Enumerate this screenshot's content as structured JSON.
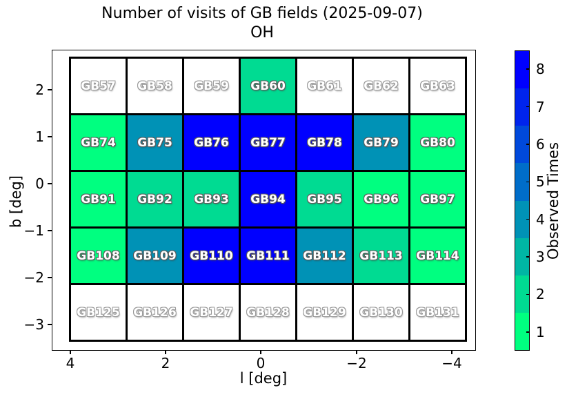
{
  "title": {
    "line1": "Number of visits of GB fields (2025-09-07)",
    "line2": "OH"
  },
  "axes": {
    "xlabel": "l [deg]",
    "ylabel": "b [deg]",
    "xtick_labels": [
      "4",
      "2",
      "0",
      "−2",
      "−4"
    ],
    "ytick_labels": [
      "2",
      "1",
      "0",
      "−1",
      "−2",
      "−3"
    ]
  },
  "colorbar": {
    "label": "Observed Times",
    "tick_labels": [
      "1",
      "2",
      "3",
      "4",
      "5",
      "6",
      "7",
      "8"
    ],
    "colors": [
      "#00ff80",
      "#00db92",
      "#00b6a4",
      "#0092b6",
      "#006dc9",
      "#0049db",
      "#0024ed",
      "#0000ff"
    ]
  },
  "chart_data": {
    "type": "heatmap",
    "title": "Number of visits of GB fields (2025-09-07) OH",
    "xlabel": "l [deg]",
    "ylabel": "b [deg]",
    "x_ticks": [
      4,
      2,
      0,
      -2,
      -4
    ],
    "y_ticks": [
      2,
      1,
      0,
      -1,
      -2,
      -3
    ],
    "x_axis_inverted": true,
    "grid_shape": [
      5,
      7
    ],
    "colorbar_label": "Observed Times",
    "value_range": [
      1,
      8
    ],
    "no_visit_color": "#ffffff",
    "rows": [
      {
        "labels": [
          "GB57",
          "GB58",
          "GB59",
          "GB60",
          "GB61",
          "GB62",
          "GB63"
        ],
        "visits": [
          0,
          0,
          0,
          2,
          0,
          0,
          0
        ]
      },
      {
        "labels": [
          "GB74",
          "GB75",
          "GB76",
          "GB77",
          "GB78",
          "GB79",
          "GB80"
        ],
        "visits": [
          1,
          4,
          8,
          8,
          8,
          4,
          1
        ]
      },
      {
        "labels": [
          "GB91",
          "GB92",
          "GB93",
          "GB94",
          "GB95",
          "GB96",
          "GB97"
        ],
        "visits": [
          1,
          2,
          2,
          8,
          2,
          1,
          1
        ]
      },
      {
        "labels": [
          "GB108",
          "GB109",
          "GB110",
          "GB111",
          "GB112",
          "GB113",
          "GB114"
        ],
        "visits": [
          1,
          4,
          8,
          8,
          4,
          2,
          1
        ]
      },
      {
        "labels": [
          "GB125",
          "GB126",
          "GB127",
          "GB128",
          "GB129",
          "GB130",
          "GB131"
        ],
        "visits": [
          0,
          0,
          0,
          0,
          0,
          0,
          0
        ]
      }
    ]
  }
}
